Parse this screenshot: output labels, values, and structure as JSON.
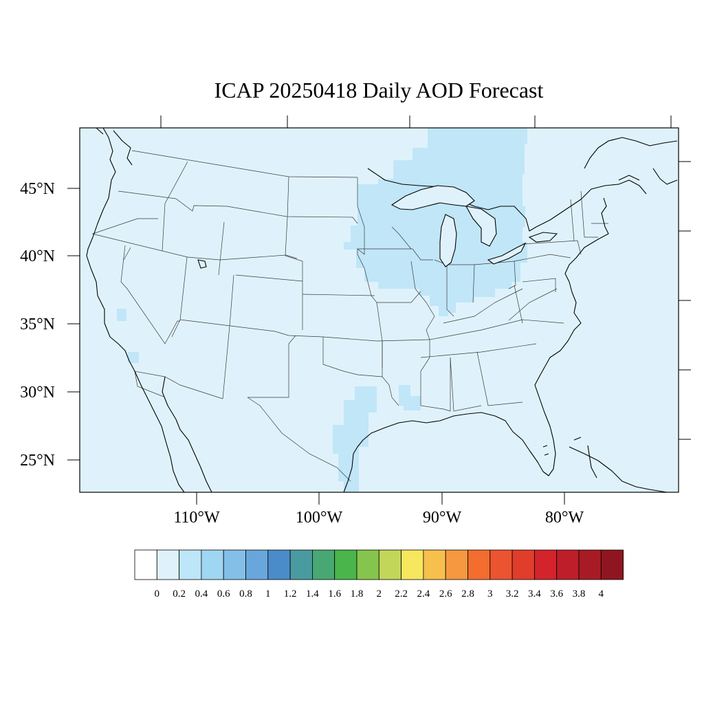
{
  "title": "ICAP 20250418 Daily AOD Forecast",
  "map": {
    "lon_labels": [
      "110°W",
      "100°W",
      "90°W",
      "80°W"
    ],
    "lat_labels": [
      "45°N",
      "40°N",
      "35°N",
      "30°N",
      "25°N"
    ],
    "background_color": "#dff2fb",
    "highlight_color": "#c0e6f8",
    "regions": [
      {
        "name": "upper-midwest-great-lakes",
        "aod_bin": "0.2-0.4"
      },
      {
        "name": "east-texas",
        "aod_bin": "0.2-0.4"
      },
      {
        "name": "louisiana",
        "aod_bin": "0.2-0.4"
      },
      {
        "name": "southern-california-patches",
        "aod_bin": "0.2-0.4"
      }
    ]
  },
  "colorbar": {
    "labels": [
      "0",
      "0.2",
      "0.4",
      "0.6",
      "0.8",
      "1",
      "1.2",
      "1.4",
      "1.6",
      "1.8",
      "2",
      "2.2",
      "2.4",
      "2.6",
      "2.8",
      "3",
      "3.2",
      "3.4",
      "3.6",
      "3.8",
      "4"
    ],
    "colors": [
      "#ffffff",
      "#dff2fb",
      "#bde6f8",
      "#9fd6f2",
      "#84bfe7",
      "#69a6db",
      "#4a8bca",
      "#4a9ba0",
      "#48a874",
      "#4ab54b",
      "#86c54d",
      "#c2d659",
      "#f6e75f",
      "#f7c04d",
      "#f5983f",
      "#f26d2e",
      "#ec5330",
      "#e03d2b",
      "#d3242b",
      "#bd1e2a",
      "#a71b25",
      "#8f1620"
    ]
  }
}
